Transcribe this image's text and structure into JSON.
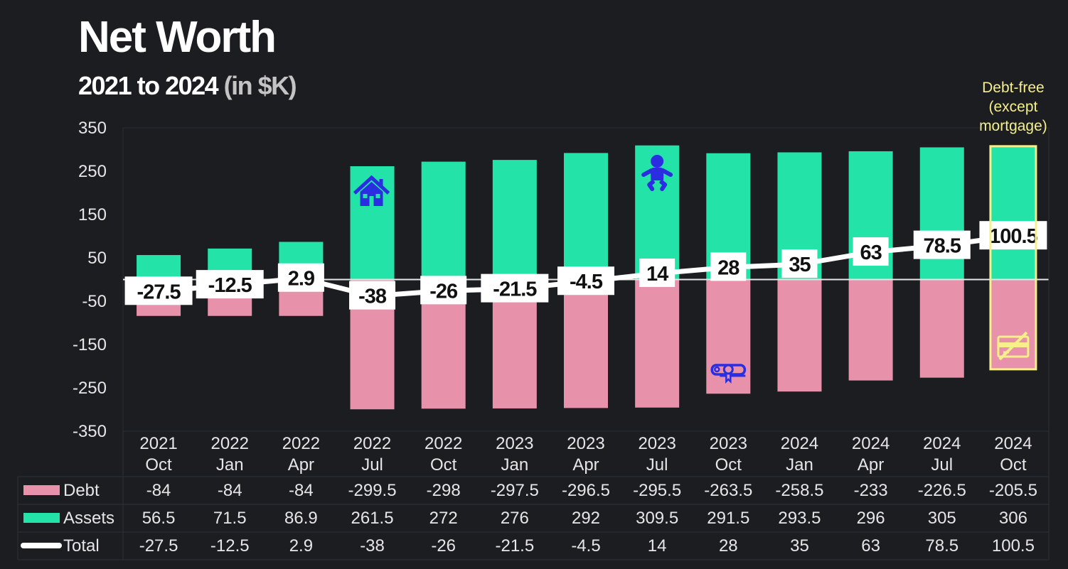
{
  "header": {
    "title": "Net Worth",
    "subtitle_main": "2021 to 2024",
    "subtitle_unit": "(in $K)"
  },
  "colors": {
    "background": "#1b1d21",
    "debt": "#e891ab",
    "assets": "#24e3a8",
    "total": "#ffffff",
    "highlight": "#f6ef8a",
    "icon": "#2a2ee0"
  },
  "chart_data": {
    "type": "bar",
    "title": "Net Worth",
    "subtitle": "2021 to 2024 (in $K)",
    "xlabel": "",
    "ylabel": "",
    "ylim": [
      -350,
      350
    ],
    "yticks": [
      350,
      250,
      150,
      50,
      -50,
      -150,
      -250,
      -350
    ],
    "grid": false,
    "legend": "table-bottom-left",
    "categories": [
      [
        "2021",
        "Oct"
      ],
      [
        "2022",
        "Jan"
      ],
      [
        "2022",
        "Apr"
      ],
      [
        "2022",
        "Jul"
      ],
      [
        "2022",
        "Oct"
      ],
      [
        "2023",
        "Jan"
      ],
      [
        "2023",
        "Apr"
      ],
      [
        "2023",
        "Jul"
      ],
      [
        "2023",
        "Oct"
      ],
      [
        "2024",
        "Jan"
      ],
      [
        "2024",
        "Apr"
      ],
      [
        "2024",
        "Jul"
      ],
      [
        "2024",
        "Oct"
      ]
    ],
    "series": [
      {
        "name": "Debt",
        "kind": "bar",
        "values": [
          -84,
          -84,
          -84,
          -299.5,
          -298,
          -297.5,
          -296.5,
          -295.5,
          -263.5,
          -258.5,
          -233,
          -226.5,
          -205.5
        ]
      },
      {
        "name": "Assets",
        "kind": "bar",
        "values": [
          56.5,
          71.5,
          86.9,
          261.5,
          272,
          276,
          292,
          309.5,
          291.5,
          293.5,
          296,
          305,
          306
        ]
      },
      {
        "name": "Total",
        "kind": "line",
        "values": [
          -27.5,
          -12.5,
          2.9,
          -38,
          -26,
          -21.5,
          -4.5,
          14,
          28,
          35,
          63,
          78.5,
          100.5
        ]
      }
    ],
    "data_labels": [
      "-27.5",
      "-12.5",
      "2.9",
      "-38",
      "-26",
      "-21.5",
      "-4.5",
      "14",
      "28",
      "35",
      "63",
      "78.5",
      "100.5"
    ],
    "table_rows": [
      {
        "label": "Debt",
        "values": [
          "-84",
          "-84",
          "-84",
          "-299.5",
          "-298",
          "-297.5",
          "-296.5",
          "-295.5",
          "-263.5",
          "-258.5",
          "-233",
          "-226.5",
          "-205.5"
        ]
      },
      {
        "label": "Assets",
        "values": [
          "56.5",
          "71.5",
          "86.9",
          "261.5",
          "272",
          "276",
          "292",
          "309.5",
          "291.5",
          "293.5",
          "296",
          "305",
          "306"
        ]
      },
      {
        "label": "Total",
        "values": [
          "-27.5",
          "-12.5",
          "2.9",
          "-38",
          "-26",
          "-21.5",
          "-4.5",
          "14",
          "28",
          "35",
          "63",
          "78.5",
          "100.5"
        ]
      }
    ],
    "annotations": [
      {
        "category_index": 3,
        "icon": "house-icon",
        "series": "Assets"
      },
      {
        "category_index": 7,
        "icon": "baby-icon",
        "series": "Assets"
      },
      {
        "category_index": 8,
        "icon": "diploma-icon",
        "series": "Debt"
      },
      {
        "category_index": 12,
        "icon": "no-credit-card-icon",
        "series": "Debt",
        "highlighted": true,
        "text": [
          "Debt-free",
          "(except",
          "mortgage)"
        ]
      }
    ]
  }
}
